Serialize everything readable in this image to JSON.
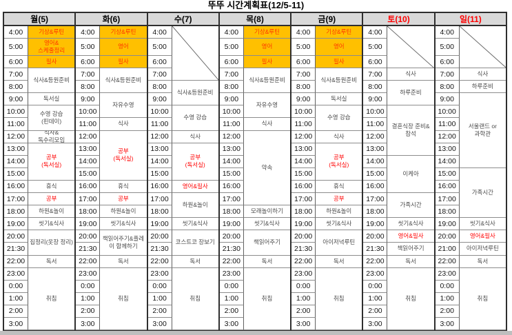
{
  "title": "뚜뚜 시간계획표(12/5-11)",
  "colors": {
    "header_bg": "#d9d9d9",
    "highlight_bg": "#ffc000",
    "highlight_text": "#ff3300",
    "red_text": "#ff0000",
    "header_red_text": "#ff0000",
    "grid_line": "#8c8c8c",
    "outer_border": "#2e2e2e",
    "footer_bar": "#bfbfbf"
  },
  "default_times": [
    "4:00",
    "5:00",
    "6:00",
    "7:00",
    "8:00",
    "9:00",
    "10:00",
    "11:00",
    "12:00",
    "13:00",
    "14:00",
    "15:00",
    "16:00",
    "17:00",
    "18:00",
    "19:00",
    "20:00",
    "21:30",
    "22:00",
    "23:00",
    "0:00",
    "1:00",
    "2:00",
    "3:00"
  ],
  "days": [
    {
      "label": "월(5)",
      "red": false,
      "blocks": [
        {
          "row": 1,
          "span": 1,
          "text": "기상&루틴",
          "style": "highlight"
        },
        {
          "row": 2,
          "span": 1,
          "text": "영어&\n스케줄정리",
          "style": "highlight"
        },
        {
          "row": 3,
          "span": 1,
          "text": "필사",
          "style": "highlight"
        },
        {
          "row": 4,
          "span": 2,
          "text": "식사&등원준비",
          "style": "normal"
        },
        {
          "row": 6,
          "span": 1,
          "text": "독서실",
          "style": "normal"
        },
        {
          "row": 7,
          "span": 2,
          "text": "수영 강습\n(핀데이)",
          "style": "normal"
        },
        {
          "row": 9,
          "span": 1,
          "text": "식사&\n독수리모임",
          "style": "normal"
        },
        {
          "row": 10,
          "span": 3,
          "text": "공부\n(독서실)",
          "style": "red"
        },
        {
          "row": 13,
          "span": 1,
          "text": "휴식",
          "style": "normal"
        },
        {
          "row": 14,
          "span": 1,
          "text": "공부",
          "style": "red"
        },
        {
          "row": 15,
          "span": 1,
          "text": "하원&놀이",
          "style": "normal"
        },
        {
          "row": 16,
          "span": 1,
          "text": "씻기&식사",
          "style": "normal"
        },
        {
          "row": 17,
          "span": 2,
          "text": "집정리(옷장 정리)",
          "style": "normal"
        },
        {
          "row": 19,
          "span": 1,
          "text": "독서",
          "style": "normal"
        },
        {
          "row": 20,
          "span": 5,
          "text": "취침",
          "style": "normal"
        }
      ]
    },
    {
      "label": "화(6)",
      "red": false,
      "blocks": [
        {
          "row": 1,
          "span": 1,
          "text": "기상&루틴",
          "style": "highlight"
        },
        {
          "row": 2,
          "span": 1,
          "text": "영어",
          "style": "highlight"
        },
        {
          "row": 3,
          "span": 1,
          "text": "필사",
          "style": "highlight"
        },
        {
          "row": 4,
          "span": 2,
          "text": "식사&등원준비",
          "style": "normal"
        },
        {
          "row": 6,
          "span": 2,
          "text": "자유수영",
          "style": "normal"
        },
        {
          "row": 8,
          "span": 1,
          "text": "식사",
          "style": "normal"
        },
        {
          "row": 9,
          "span": 4,
          "text": "공부\n(독서실)",
          "style": "red"
        },
        {
          "row": 13,
          "span": 1,
          "text": "휴식",
          "style": "normal"
        },
        {
          "row": 14,
          "span": 1,
          "text": "공부",
          "style": "red"
        },
        {
          "row": 15,
          "span": 1,
          "text": "하원&놀이",
          "style": "normal"
        },
        {
          "row": 16,
          "span": 1,
          "text": "씻기&식사",
          "style": "normal"
        },
        {
          "row": 17,
          "span": 2,
          "text": "책읽어주기&플레이 함께하기",
          "style": "normal"
        },
        {
          "row": 19,
          "span": 1,
          "text": "독서",
          "style": "normal"
        },
        {
          "row": 20,
          "span": 5,
          "text": "취침",
          "style": "normal"
        }
      ]
    },
    {
      "label": "수(7)",
      "red": false,
      "blocks": [
        {
          "row": 1,
          "span": 4,
          "text": "",
          "style": "diagonal"
        },
        {
          "row": 5,
          "span": 2,
          "text": "식사&등원준비",
          "style": "normal"
        },
        {
          "row": 7,
          "span": 2,
          "text": "수영 강습",
          "style": "normal"
        },
        {
          "row": 9,
          "span": 1,
          "text": "식사",
          "style": "normal"
        },
        {
          "row": 10,
          "span": 3,
          "text": "공부\n(독서실)",
          "style": "red"
        },
        {
          "row": 13,
          "span": 1,
          "text": "영어&필사",
          "style": "red"
        },
        {
          "row": 14,
          "span": 2,
          "text": "하원&놀이",
          "style": "normal"
        },
        {
          "row": 16,
          "span": 1,
          "text": "씻기&식사",
          "style": "normal"
        },
        {
          "row": 17,
          "span": 2,
          "text": "코스트코 장보기",
          "style": "normal"
        },
        {
          "row": 19,
          "span": 1,
          "text": "독서",
          "style": "normal"
        },
        {
          "row": 20,
          "span": 5,
          "text": "취침",
          "style": "normal"
        }
      ]
    },
    {
      "label": "목(8)",
      "red": false,
      "blocks": [
        {
          "row": 1,
          "span": 1,
          "text": "기상&루틴",
          "style": "highlight"
        },
        {
          "row": 2,
          "span": 1,
          "text": "영어",
          "style": "highlight"
        },
        {
          "row": 3,
          "span": 1,
          "text": "필사",
          "style": "highlight"
        },
        {
          "row": 4,
          "span": 2,
          "text": "식사&등원준비",
          "style": "normal"
        },
        {
          "row": 6,
          "span": 2,
          "text": "자유수영",
          "style": "normal"
        },
        {
          "row": 8,
          "span": 1,
          "text": "식사",
          "style": "normal"
        },
        {
          "row": 9,
          "span": 6,
          "text": "약속",
          "style": "normal"
        },
        {
          "row": 15,
          "span": 1,
          "text": "모래놀이하기",
          "style": "normal"
        },
        {
          "row": 16,
          "span": 1,
          "text": "씻기&식사",
          "style": "normal"
        },
        {
          "row": 17,
          "span": 2,
          "text": "책읽어주기",
          "style": "normal"
        },
        {
          "row": 19,
          "span": 1,
          "text": "독서",
          "style": "normal"
        },
        {
          "row": 20,
          "span": 5,
          "text": "취침",
          "style": "normal"
        }
      ]
    },
    {
      "label": "금(9)",
      "red": false,
      "blocks": [
        {
          "row": 1,
          "span": 1,
          "text": "기상&루틴",
          "style": "highlight"
        },
        {
          "row": 2,
          "span": 1,
          "text": "영어",
          "style": "highlight"
        },
        {
          "row": 3,
          "span": 1,
          "text": "필사",
          "style": "highlight"
        },
        {
          "row": 4,
          "span": 2,
          "text": "식사&등원준비",
          "style": "normal"
        },
        {
          "row": 6,
          "span": 1,
          "text": "독서실",
          "style": "normal"
        },
        {
          "row": 7,
          "span": 2,
          "text": "수영 강습",
          "style": "normal"
        },
        {
          "row": 9,
          "span": 1,
          "text": "식사",
          "style": "normal"
        },
        {
          "row": 10,
          "span": 3,
          "text": "공부\n(독서실)",
          "style": "red"
        },
        {
          "row": 13,
          "span": 1,
          "text": "휴식",
          "style": "normal"
        },
        {
          "row": 14,
          "span": 1,
          "text": "공부",
          "style": "red"
        },
        {
          "row": 15,
          "span": 1,
          "text": "하원&놀이",
          "style": "normal"
        },
        {
          "row": 16,
          "span": 1,
          "text": "씻기&식사",
          "style": "normal"
        },
        {
          "row": 17,
          "span": 2,
          "text": "아이저녁루틴",
          "style": "normal"
        },
        {
          "row": 19,
          "span": 1,
          "text": "독서",
          "style": "normal"
        },
        {
          "row": 20,
          "span": 5,
          "text": "취침",
          "style": "normal"
        }
      ]
    },
    {
      "label": "토(10)",
      "red": true,
      "blocks": [
        {
          "row": 1,
          "span": 3,
          "text": "",
          "style": "diagonal"
        },
        {
          "row": 4,
          "span": 1,
          "text": "식사",
          "style": "normal"
        },
        {
          "row": 5,
          "span": 2,
          "text": "하루준비",
          "style": "normal"
        },
        {
          "row": 7,
          "span": 4,
          "text": "결혼식장 준비&\n참석",
          "style": "normal"
        },
        {
          "row": 11,
          "span": 3,
          "text": "이케아",
          "style": "normal"
        },
        {
          "row": 14,
          "span": 2,
          "text": "가족시간",
          "style": "normal"
        },
        {
          "row": 16,
          "span": 1,
          "text": "씻기&식사",
          "style": "normal"
        },
        {
          "row": 17,
          "span": 1,
          "text": "영어&필사",
          "style": "red"
        },
        {
          "row": 18,
          "span": 1,
          "text": "책읽어주기",
          "style": "normal"
        },
        {
          "row": 19,
          "span": 1,
          "text": "독서",
          "style": "normal"
        },
        {
          "row": 20,
          "span": 5,
          "text": "취침",
          "style": "normal"
        }
      ]
    },
    {
      "label": "일(11)",
      "red": true,
      "times": [
        "4:00",
        "5:00",
        "6:00",
        "7:00",
        "8:00",
        "9:00",
        "10:00",
        "11:00",
        "12:00",
        "13:00",
        "14:00",
        "15:00",
        "16:00",
        "17:00",
        "18:00",
        "19:00",
        "20:00",
        "21:00",
        "22:00",
        "23:00",
        "0:00",
        "1:00",
        "2:00",
        "3:00"
      ],
      "blocks": [
        {
          "row": 1,
          "span": 3,
          "text": "",
          "style": "diagonal"
        },
        {
          "row": 4,
          "span": 1,
          "text": "식사",
          "style": "normal"
        },
        {
          "row": 5,
          "span": 1,
          "text": "하루준비",
          "style": "normal"
        },
        {
          "row": 6,
          "span": 6,
          "text": "서울랜드 or\n과학관",
          "style": "normal"
        },
        {
          "row": 12,
          "span": 4,
          "text": "가족시간",
          "style": "normal"
        },
        {
          "row": 16,
          "span": 1,
          "text": "씻기&식사",
          "style": "normal"
        },
        {
          "row": 17,
          "span": 1,
          "text": "영어&필사",
          "style": "red"
        },
        {
          "row": 18,
          "span": 1,
          "text": "아이저녁루틴",
          "style": "normal"
        },
        {
          "row": 19,
          "span": 1,
          "text": "독서",
          "style": "normal"
        },
        {
          "row": 20,
          "span": 5,
          "text": "취침",
          "style": "normal"
        }
      ]
    }
  ]
}
